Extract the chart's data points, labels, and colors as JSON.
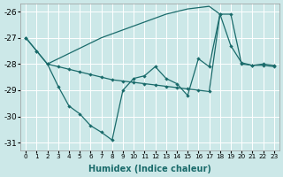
{
  "xlabel": "Humidex (Indice chaleur)",
  "background_color": "#cce8e8",
  "line_color": "#1a6b6b",
  "grid_color": "#ffffff",
  "xlim": [
    -0.5,
    23.5
  ],
  "ylim": [
    -31.3,
    -25.7
  ],
  "yticks": [
    -31,
    -30,
    -29,
    -28,
    -27,
    -26
  ],
  "xticks": [
    0,
    1,
    2,
    3,
    4,
    5,
    6,
    7,
    8,
    9,
    10,
    11,
    12,
    13,
    14,
    15,
    16,
    17,
    18,
    19,
    20,
    21,
    22,
    23
  ],
  "line1_x": [
    0,
    1,
    2,
    3,
    4,
    5,
    6,
    7,
    8,
    9,
    10,
    11,
    12,
    13,
    14,
    15,
    16,
    17,
    18,
    19,
    20,
    21,
    22,
    23
  ],
  "line1_y": [
    -27.0,
    -27.5,
    -28.0,
    -28.85,
    -29.6,
    -29.9,
    -30.35,
    -30.6,
    -30.9,
    -29.0,
    -28.55,
    -28.45,
    -28.1,
    -28.55,
    -28.75,
    -29.2,
    -27.8,
    -28.1,
    -26.1,
    -27.3,
    -27.95,
    -28.05,
    -28.0,
    -28.05
  ],
  "line2_x": [
    2,
    3,
    4,
    5,
    6,
    7,
    8,
    9,
    10,
    11,
    12,
    13,
    14,
    15,
    16,
    17,
    18
  ],
  "line2_y": [
    -28.0,
    -27.8,
    -27.6,
    -27.4,
    -27.2,
    -27.0,
    -26.85,
    -26.7,
    -26.55,
    -26.4,
    -26.25,
    -26.1,
    -26.0,
    -25.9,
    -25.85,
    -25.8,
    -26.1
  ],
  "line3_x": [
    0,
    1,
    2,
    3,
    4,
    5,
    6,
    7,
    8,
    9,
    10,
    11,
    12,
    13,
    14,
    15,
    16,
    17,
    18,
    19,
    20,
    21,
    22,
    23
  ],
  "line3_y": [
    -27.0,
    -27.5,
    -28.0,
    -28.1,
    -28.2,
    -28.3,
    -28.4,
    -28.5,
    -28.6,
    -28.65,
    -28.7,
    -28.75,
    -28.8,
    -28.85,
    -28.9,
    -28.95,
    -29.0,
    -29.05,
    -26.1,
    -26.1,
    -28.0,
    -28.05,
    -28.05,
    -28.1
  ]
}
